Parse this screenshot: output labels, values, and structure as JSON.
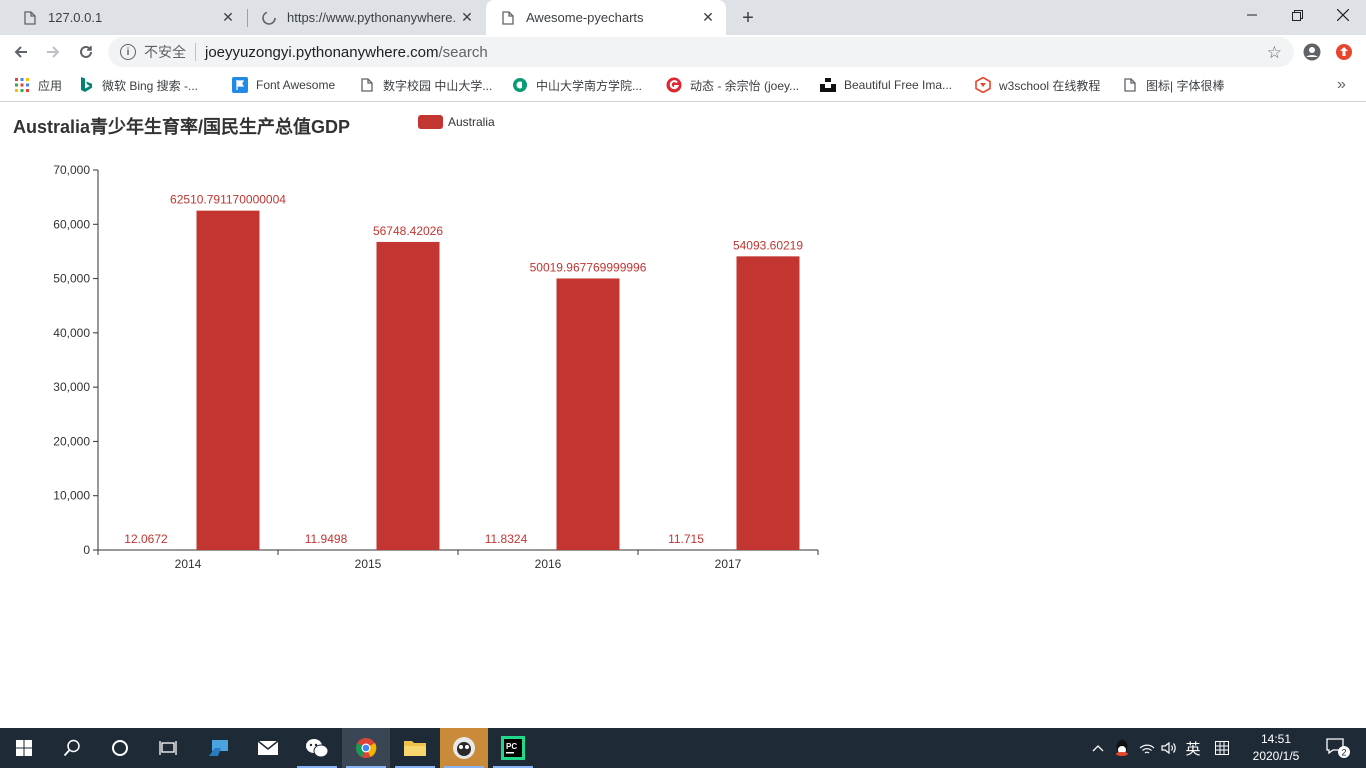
{
  "browser": {
    "tabs": [
      {
        "title": "127.0.0.1",
        "active": false
      },
      {
        "title": "https://www.pythonanywhere.",
        "active": false
      },
      {
        "title": "Awesome-pyecharts",
        "active": true
      }
    ],
    "address": {
      "security_label": "不安全",
      "host": "joeyyuzongyi.pythonanywhere.com",
      "path": "/search"
    },
    "bookmarks": [
      {
        "label": "应用",
        "icon": "apps-grid-icon"
      },
      {
        "label": "微软 Bing 搜索 -...",
        "icon": "bing-icon"
      },
      {
        "label": "Font Awesome",
        "icon": "flag-icon"
      },
      {
        "label": "数字校园 中山大学...",
        "icon": "page-icon"
      },
      {
        "label": "中山大学南方学院...",
        "icon": "school-icon"
      },
      {
        "label": "动态 - 余宗怡 (joey...",
        "icon": "g-icon"
      },
      {
        "label": "Beautiful Free Ima...",
        "icon": "unsplash-icon"
      },
      {
        "label": "w3school 在线教程",
        "icon": "w3school-icon"
      },
      {
        "label": "图标| 字体很棒",
        "icon": "page-icon"
      }
    ],
    "accent_color": "#1a73e8"
  },
  "page": {
    "title": "Australia青少年生育率/国民生产总值GDP",
    "legend_label": "Australia",
    "series_color": "#c23531"
  },
  "chart_data": {
    "type": "bar",
    "title": "Australia青少年生育率/国民生产总值GDP",
    "categories": [
      "2014",
      "2015",
      "2016",
      "2017"
    ],
    "series": [
      {
        "name": "Australia",
        "values": [
          12.0672,
          11.9498,
          11.8324,
          11.715
        ],
        "labels": [
          "12.0672",
          "11.9498",
          "11.8324",
          "11.715"
        ]
      },
      {
        "name": "Australia",
        "values": [
          62510.791170000004,
          56748.42026,
          50019.967769999996,
          54093.60219
        ],
        "labels": [
          "62510.791170000004",
          "56748.42026",
          "50019.967769999996",
          "54093.60219"
        ]
      }
    ],
    "ylim": [
      0,
      70000
    ],
    "yticks": [
      "0",
      "10,000",
      "20,000",
      "30,000",
      "40,000",
      "50,000",
      "60,000",
      "70,000"
    ],
    "ytick_values": [
      0,
      10000,
      20000,
      30000,
      40000,
      50000,
      60000,
      70000
    ],
    "grid": false,
    "legend_position": "top"
  },
  "taskbar": {
    "time": "14:51",
    "date": "2020/1/5",
    "ime": "英",
    "notifications": "2"
  }
}
